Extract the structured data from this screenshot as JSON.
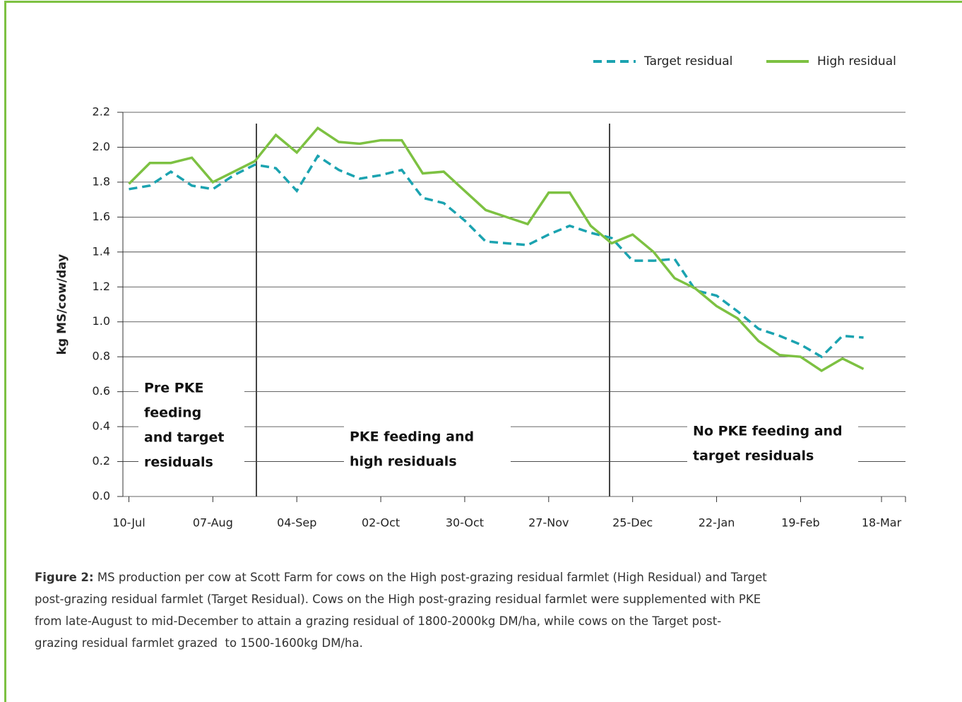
{
  "chart_data": {
    "type": "line",
    "ylabel": "kg MS/cow/day",
    "x": [
      "10-Jul",
      "17-Jul",
      "24-Jul",
      "31-Jul",
      "07-Aug",
      "14-Aug",
      "21-Aug",
      "28-Aug",
      "04-Sep",
      "11-Sep",
      "18-Sep",
      "25-Sep",
      "02-Oct",
      "09-Oct",
      "16-Oct",
      "23-Oct",
      "30-Oct",
      "06-Nov",
      "13-Nov",
      "20-Nov",
      "27-Nov",
      "04-Dec",
      "11-Dec",
      "18-Dec",
      "25-Dec",
      "01-Jan",
      "08-Jan",
      "15-Jan",
      "22-Jan",
      "29-Jan",
      "05-Feb",
      "12-Feb",
      "19-Feb",
      "26-Feb",
      "05-Mar",
      "12-Mar"
    ],
    "series": [
      {
        "name": "Target residual",
        "color": "#1ba3b0",
        "dashed": true,
        "values": [
          1.76,
          1.78,
          1.86,
          1.78,
          1.76,
          1.84,
          1.9,
          1.88,
          1.75,
          1.95,
          1.87,
          1.82,
          1.84,
          1.87,
          1.71,
          1.68,
          1.58,
          1.46,
          1.45,
          1.44,
          1.5,
          1.55,
          1.51,
          1.48,
          1.35,
          1.35,
          1.36,
          1.18,
          1.15,
          1.06,
          0.96,
          0.92,
          0.87,
          0.8,
          0.92,
          0.91
        ]
      },
      {
        "name": "High residual",
        "color": "#7dc142",
        "dashed": false,
        "values": [
          1.79,
          1.91,
          1.91,
          1.94,
          1.8,
          1.86,
          1.92,
          2.07,
          1.97,
          2.11,
          2.03,
          2.02,
          2.04,
          2.04,
          1.85,
          1.86,
          1.75,
          1.64,
          1.6,
          1.56,
          1.74,
          1.74,
          1.55,
          1.45,
          1.5,
          1.4,
          1.25,
          1.19,
          1.09,
          1.02,
          0.89,
          0.81,
          0.8,
          0.72,
          0.79,
          0.73
        ]
      }
    ],
    "xlim": [
      "08-Jul",
      "26-Mar"
    ],
    "xticks": [
      "10-Jul",
      "07-Aug",
      "04-Sep",
      "02-Oct",
      "30-Oct",
      "27-Nov",
      "25-Dec",
      "22-Jan",
      "19-Feb",
      "18-Mar"
    ],
    "ylim": [
      0,
      2.2
    ],
    "yticks": [
      {
        "value": 0,
        "label": "0.0"
      },
      0.2,
      0.4,
      0.6,
      0.8,
      {
        "value": 1,
        "label": "1.0"
      },
      1.2,
      1.4,
      1.6,
      1.8,
      {
        "value": 2,
        "label": "2.0"
      },
      2.2
    ],
    "grid": true,
    "legend": "top-right",
    "annotations": [
      [
        "Pre PKE",
        "feeding",
        "and target",
        "residuals"
      ],
      [
        "PKE feeding and",
        "high residuals"
      ],
      [
        "No PKE feeding and",
        "target residuals"
      ]
    ]
  },
  "caption": {
    "label": "Figure 2:",
    "lines": [
      " MS production per cow at Scott Farm for cows on the High post-grazing residual farmlet (High Residual) and Target",
      "post-grazing residual farmlet (Target Residual). Cows on the High post-grazing residual farmlet were supplemented with PKE",
      "from late-August to mid-December to attain a grazing residual of 1800-2000kg DM/ha, while cows on the Target post-",
      "grazing residual farmlet grazed  to 1500-1600kg DM/ha."
    ]
  }
}
